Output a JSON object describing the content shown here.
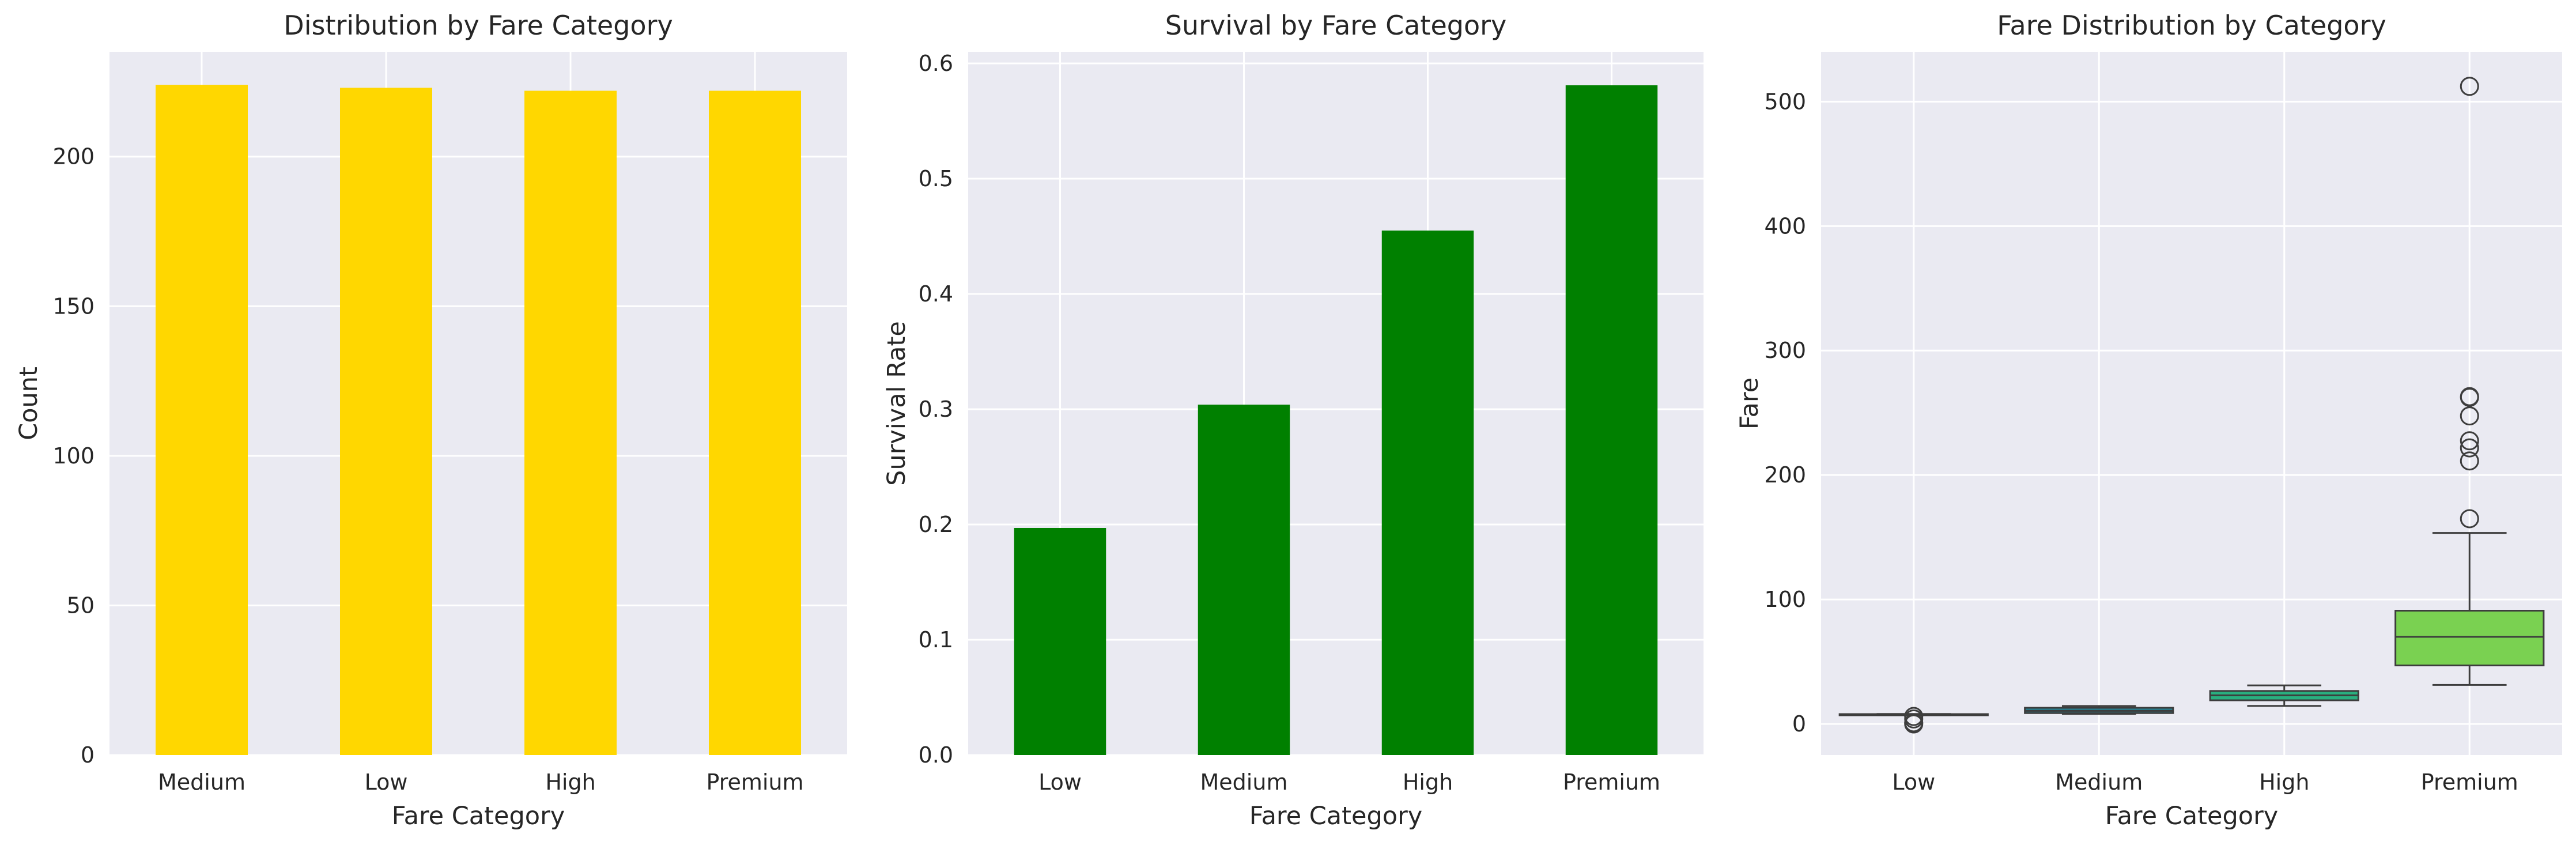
{
  "chart_data": [
    {
      "type": "bar",
      "title": "Distribution by Fare Category",
      "xlabel": "Fare Category",
      "ylabel": "Count",
      "categories": [
        "Medium",
        "Low",
        "High",
        "Premium"
      ],
      "values": [
        224,
        223,
        222,
        222
      ],
      "ylim": [
        0,
        235
      ],
      "yticks": [
        0,
        50,
        100,
        150,
        200
      ],
      "color": "#FFD700",
      "grid": true
    },
    {
      "type": "bar",
      "title": "Survival by Fare Category",
      "xlabel": "Fare Category",
      "ylabel": "Survival Rate",
      "categories": [
        "Low",
        "Medium",
        "High",
        "Premium"
      ],
      "values": [
        0.197,
        0.304,
        0.455,
        0.581
      ],
      "ylim": [
        0,
        0.61
      ],
      "yticks": [
        0.0,
        0.1,
        0.2,
        0.3,
        0.4,
        0.5,
        0.6
      ],
      "tick_decimals": 1,
      "color": "#008000",
      "grid": true
    },
    {
      "type": "box",
      "title": "Fare Distribution by Category",
      "xlabel": "Fare Category",
      "ylabel": "Fare",
      "categories": [
        "Low",
        "Medium",
        "High",
        "Premium"
      ],
      "ylim": [
        -25,
        540
      ],
      "yticks": [
        0,
        100,
        200,
        300,
        400,
        500
      ],
      "grid": true,
      "boxes": [
        {
          "name": "Low",
          "whisker_low": 7.0,
          "q1": 7.6,
          "median": 7.8,
          "q3": 7.9,
          "whisker_high": 8.0,
          "outliers": [
            0,
            1,
            4.0,
            6.0
          ],
          "color": "#39568C"
        },
        {
          "name": "Medium",
          "whisker_low": 8.1,
          "q1": 8.7,
          "median": 10.5,
          "q3": 13.0,
          "whisker_high": 14.4,
          "outliers": [],
          "color": "#287D8E"
        },
        {
          "name": "High",
          "whisker_low": 14.5,
          "q1": 19.0,
          "median": 23.0,
          "q3": 26.5,
          "whisker_high": 31.0,
          "outliers": [],
          "color": "#29AF7F"
        },
        {
          "name": "Premium",
          "whisker_low": 31.3,
          "q1": 47.0,
          "median": 70.0,
          "q3": 91.0,
          "whisker_high": 153.5,
          "outliers": [
            164.9,
            211.3,
            221.8,
            227.5,
            247.5,
            262.4,
            263.0,
            512.3
          ],
          "color": "#7AD151"
        }
      ]
    }
  ]
}
